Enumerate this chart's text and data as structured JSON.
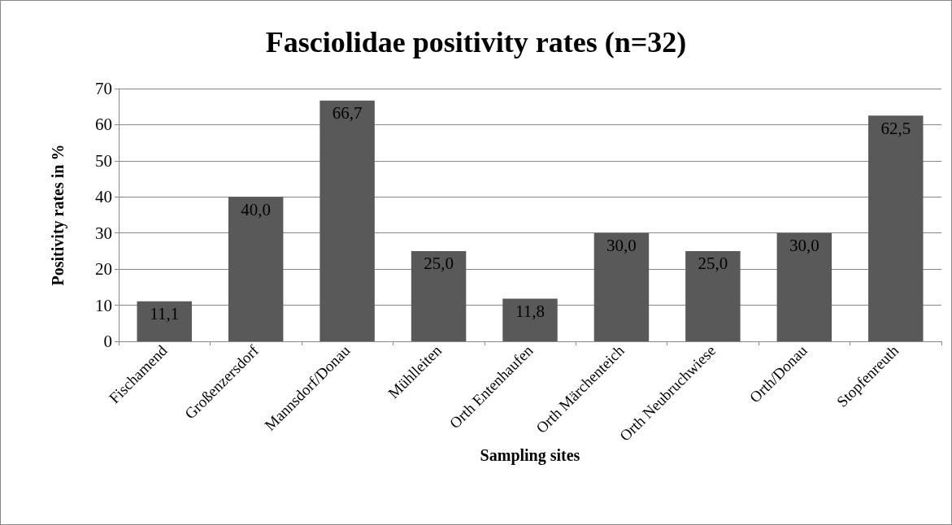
{
  "chart_data": {
    "type": "bar",
    "title": "Fasciolidae positivity rates (n=32)",
    "xlabel": "Sampling sites",
    "ylabel": "Positivity rates in %",
    "categories": [
      "Fischamend",
      "Großenzersdorf",
      "Mannsdorf/Donau",
      "Mühlleiten",
      "Orth Entenhaufen",
      "Orth Märchenteich",
      "Orth Neubruchwiese",
      "Orth/Donau",
      "Stopfenreuth"
    ],
    "values": [
      11.1,
      40.0,
      66.7,
      25.0,
      11.8,
      30.0,
      25.0,
      30.0,
      62.5
    ],
    "value_labels": [
      "11,1",
      "40,0",
      "66,7",
      "25,0",
      "11,8",
      "30,0",
      "25,0",
      "30,0",
      "62,5"
    ],
    "color": "#595959",
    "ylim": [
      0,
      70
    ],
    "yticks": [
      0,
      10,
      20,
      30,
      40,
      50,
      60,
      70
    ],
    "grid": "y"
  }
}
